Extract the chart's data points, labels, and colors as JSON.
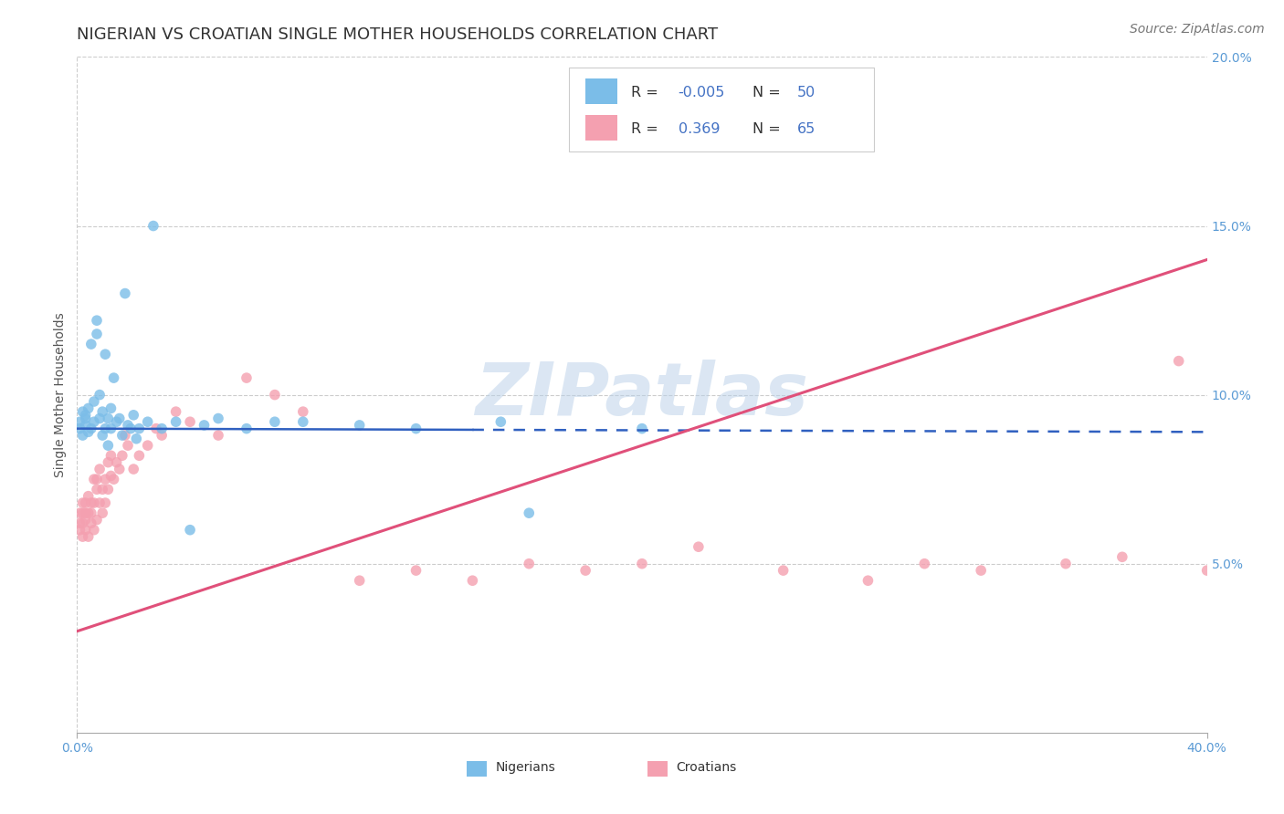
{
  "title": "NIGERIAN VS CROATIAN SINGLE MOTHER HOUSEHOLDS CORRELATION CHART",
  "source": "Source: ZipAtlas.com",
  "ylabel": "Single Mother Households",
  "xlim": [
    0.0,
    0.4
  ],
  "ylim": [
    0.0,
    0.2
  ],
  "yticks": [
    0.05,
    0.1,
    0.15,
    0.2
  ],
  "ytick_labels": [
    "5.0%",
    "10.0%",
    "15.0%",
    "20.0%"
  ],
  "nigerian_color": "#7bbde8",
  "croatian_color": "#f4a0b0",
  "nigerian_R": -0.005,
  "nigerian_N": 50,
  "croatian_R": 0.369,
  "croatian_N": 65,
  "nigerian_scatter_x": [
    0.001,
    0.001,
    0.002,
    0.002,
    0.003,
    0.003,
    0.003,
    0.004,
    0.004,
    0.005,
    0.005,
    0.006,
    0.006,
    0.007,
    0.007,
    0.008,
    0.008,
    0.009,
    0.009,
    0.01,
    0.01,
    0.011,
    0.011,
    0.012,
    0.012,
    0.013,
    0.014,
    0.015,
    0.016,
    0.017,
    0.018,
    0.019,
    0.02,
    0.021,
    0.022,
    0.025,
    0.027,
    0.03,
    0.035,
    0.04,
    0.045,
    0.05,
    0.06,
    0.07,
    0.08,
    0.1,
    0.12,
    0.15,
    0.16,
    0.2
  ],
  "nigerian_scatter_y": [
    0.09,
    0.092,
    0.088,
    0.095,
    0.093,
    0.091,
    0.094,
    0.089,
    0.096,
    0.09,
    0.115,
    0.092,
    0.098,
    0.118,
    0.122,
    0.093,
    0.1,
    0.088,
    0.095,
    0.09,
    0.112,
    0.093,
    0.085,
    0.096,
    0.09,
    0.105,
    0.092,
    0.093,
    0.088,
    0.13,
    0.091,
    0.09,
    0.094,
    0.087,
    0.09,
    0.092,
    0.15,
    0.09,
    0.092,
    0.06,
    0.091,
    0.093,
    0.09,
    0.092,
    0.092,
    0.091,
    0.09,
    0.092,
    0.065,
    0.09
  ],
  "croatian_scatter_x": [
    0.001,
    0.001,
    0.001,
    0.002,
    0.002,
    0.002,
    0.002,
    0.003,
    0.003,
    0.003,
    0.003,
    0.004,
    0.004,
    0.004,
    0.005,
    0.005,
    0.005,
    0.006,
    0.006,
    0.006,
    0.007,
    0.007,
    0.007,
    0.008,
    0.008,
    0.009,
    0.009,
    0.01,
    0.01,
    0.011,
    0.011,
    0.012,
    0.012,
    0.013,
    0.014,
    0.015,
    0.016,
    0.017,
    0.018,
    0.02,
    0.022,
    0.025,
    0.028,
    0.03,
    0.035,
    0.04,
    0.05,
    0.06,
    0.07,
    0.08,
    0.1,
    0.12,
    0.14,
    0.16,
    0.18,
    0.2,
    0.22,
    0.25,
    0.28,
    0.3,
    0.32,
    0.35,
    0.37,
    0.39,
    0.4
  ],
  "croatian_scatter_y": [
    0.065,
    0.06,
    0.062,
    0.065,
    0.058,
    0.068,
    0.062,
    0.06,
    0.065,
    0.068,
    0.063,
    0.065,
    0.058,
    0.07,
    0.068,
    0.062,
    0.065,
    0.06,
    0.075,
    0.068,
    0.072,
    0.063,
    0.075,
    0.068,
    0.078,
    0.065,
    0.072,
    0.075,
    0.068,
    0.08,
    0.072,
    0.076,
    0.082,
    0.075,
    0.08,
    0.078,
    0.082,
    0.088,
    0.085,
    0.078,
    0.082,
    0.085,
    0.09,
    0.088,
    0.095,
    0.092,
    0.088,
    0.105,
    0.1,
    0.095,
    0.045,
    0.048,
    0.045,
    0.05,
    0.048,
    0.05,
    0.055,
    0.048,
    0.045,
    0.05,
    0.048,
    0.05,
    0.052,
    0.11,
    0.048
  ],
  "watermark": "ZIPatlas",
  "background_color": "#ffffff",
  "grid_color": "#cccccc",
  "legend_R_color": "#4472c4",
  "title_fontsize": 13,
  "axis_label_fontsize": 10,
  "tick_fontsize": 10,
  "source_fontsize": 10,
  "nigerian_line_color": "#3060c0",
  "croatian_line_color": "#e0507a",
  "nigerian_line_solid_end": 0.14,
  "nigerian_line_start_y": 0.09,
  "nigerian_line_end_y": 0.089,
  "croatian_line_start_y": 0.03,
  "croatian_line_end_y": 0.14
}
